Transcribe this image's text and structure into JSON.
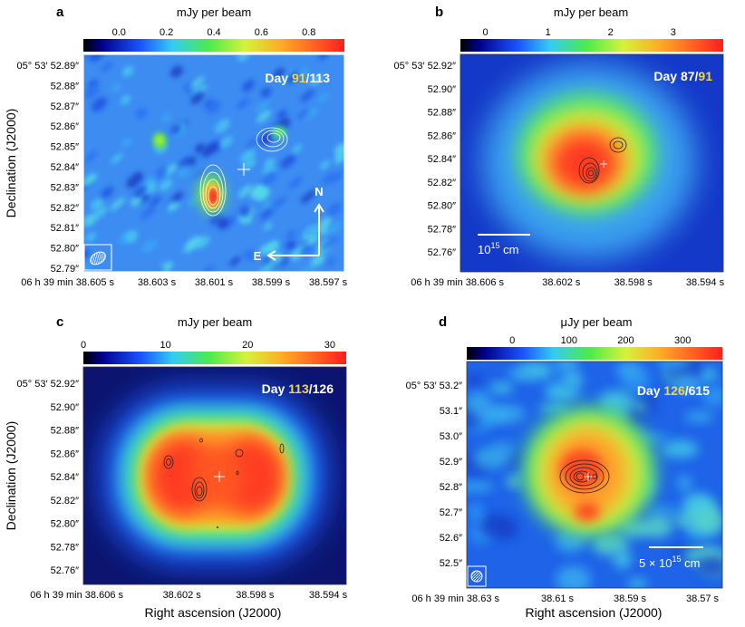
{
  "chart_data": [
    {
      "type": "heatmap",
      "panel_label": "a",
      "colorbar": {
        "label": "mJy per beam",
        "range": [
          -0.15,
          0.95
        ],
        "ticks": [
          "0.0",
          "0.2",
          "0.4",
          "0.6",
          "0.8"
        ],
        "tick_values": [
          0.0,
          0.2,
          0.4,
          0.6,
          0.8
        ]
      },
      "day_label": {
        "prefix": "Day ",
        "first": "91",
        "sep": "/",
        "second": "113"
      },
      "y_ticks": [
        "05° 53′ 52.89″",
        "52.88″",
        "52.87″",
        "52.86″",
        "52.85″",
        "52.84″",
        "52.83″",
        "52.82″",
        "52.81″",
        "52.80″",
        "52.79″"
      ],
      "x_ticks": [
        "06 h 39 min 38.605 s",
        "38.603 s",
        "38.601 s",
        "38.599 s",
        "38.597 s"
      ],
      "ylabel": "Declination (J2000)",
      "xlabel": "",
      "compass": {
        "north": "N",
        "east": "E"
      }
    },
    {
      "type": "heatmap",
      "panel_label": "b",
      "colorbar": {
        "label": "mJy per beam",
        "range": [
          -0.4,
          3.8
        ],
        "ticks": [
          "0",
          "1",
          "2",
          "3"
        ],
        "tick_values": [
          0,
          1,
          2,
          3
        ]
      },
      "day_label": {
        "prefix": "Day ",
        "first": "87",
        "sep": "/",
        "second": "91"
      },
      "y_ticks": [
        "05° 53′ 52.92″",
        "52.90″",
        "52.88″",
        "52.86″",
        "52.84″",
        "52.82″",
        "52.80″",
        "52.78″",
        "52.76″"
      ],
      "x_ticks": [
        "06 h 39 min 38.606 s",
        "38.602 s",
        "38.598 s",
        "38.594 s"
      ],
      "ylabel": "",
      "xlabel": "",
      "scale_bar": {
        "text": "10",
        "exponent": "15",
        "unit": " cm"
      }
    },
    {
      "type": "heatmap",
      "panel_label": "c",
      "colorbar": {
        "label": "mJy per beam",
        "range": [
          0,
          32
        ],
        "ticks": [
          "0",
          "10",
          "20",
          "30"
        ],
        "tick_values": [
          0,
          10,
          20,
          30
        ]
      },
      "day_label": {
        "prefix": "Day ",
        "first": "113",
        "sep": "/",
        "second": "126"
      },
      "y_ticks": [
        "05° 53′ 52.92″",
        "52.90″",
        "52.88″",
        "52.86″",
        "52.84″",
        "52.82″",
        "52.80″",
        "52.78″",
        "52.76″"
      ],
      "x_ticks": [
        "06 h 39 min 38.606 s",
        "38.602 s",
        "38.598 s",
        "38.594 s"
      ],
      "ylabel": "Declination (J2000)",
      "xlabel": "Right ascension (J2000)"
    },
    {
      "type": "heatmap",
      "panel_label": "d",
      "colorbar": {
        "label": "μJy per beam",
        "range": [
          -80,
          370
        ],
        "ticks": [
          "0",
          "100",
          "200",
          "300"
        ],
        "tick_values": [
          0,
          100,
          200,
          300
        ]
      },
      "day_label": {
        "prefix": "Day ",
        "first": "126",
        "sep": "/",
        "second": "615"
      },
      "y_ticks": [
        "05° 53′ 53.2″",
        "53.1″",
        "53.0″",
        "52.9″",
        "52.8″",
        "52.7″",
        "52.6″",
        "52.5″"
      ],
      "x_ticks": [
        "06 h 39 min 38.63 s",
        "38.61 s",
        "38.59 s",
        "38.57 s"
      ],
      "ylabel": "",
      "xlabel": "Right ascension (J2000)",
      "scale_bar": {
        "text": "5 × 10",
        "exponent": "15",
        "unit": " cm"
      }
    }
  ]
}
